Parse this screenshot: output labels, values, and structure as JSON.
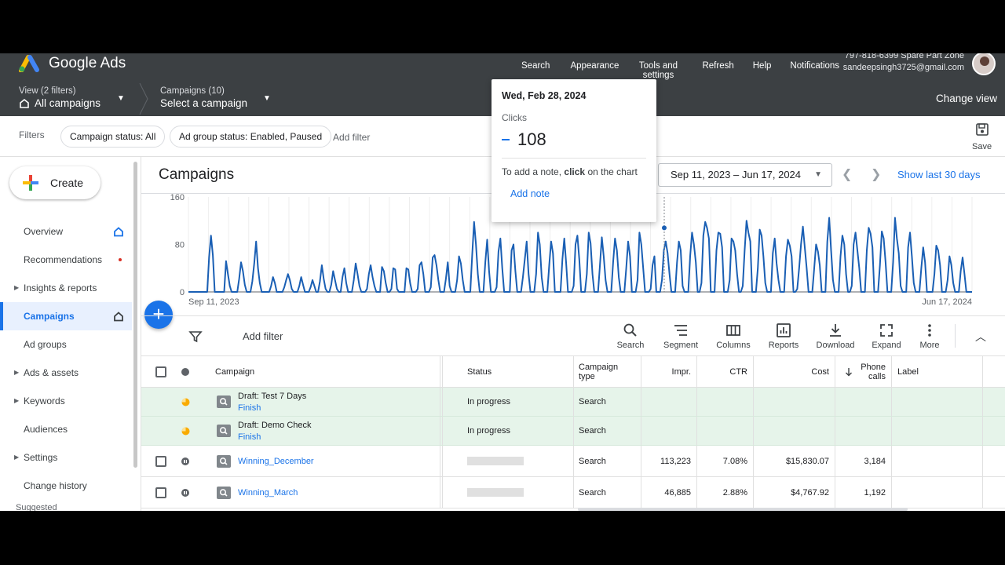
{
  "app": {
    "name": "Google Ads"
  },
  "topbar": {
    "actions": [
      {
        "label": "Search",
        "icon": "search-icon"
      },
      {
        "label": "Appearance",
        "icon": "appearance-icon"
      },
      {
        "label": "Tools and settings",
        "icon": "tools-icon"
      },
      {
        "label": "Refresh",
        "icon": "refresh-icon"
      },
      {
        "label": "Help",
        "icon": "help-icon"
      },
      {
        "label": "Notifications",
        "icon": "bell-icon"
      }
    ],
    "account_id": "797-818-6399 Spare Part Zone",
    "account_email": "sandeepsingh3725@gmail.com"
  },
  "viewbar": {
    "view_small": "View (2 filters)",
    "view_main": "All campaigns",
    "campaigns_small": "Campaigns (10)",
    "campaigns_main": "Select a campaign",
    "change_view": "Change view"
  },
  "filterbar": {
    "label": "Filters",
    "chips": [
      "Campaign status: All",
      "Ad group status: Enabled, Paused"
    ],
    "add_filter": "Add filter",
    "save": "Save"
  },
  "sidebar": {
    "create": "Create",
    "items": [
      {
        "label": "Overview",
        "expandable": false,
        "home": true
      },
      {
        "label": "Recommendations",
        "expandable": false,
        "dot": true
      },
      {
        "label": "Insights & reports",
        "expandable": true
      },
      {
        "label": "Campaigns",
        "expandable": false,
        "active": true,
        "home": true
      },
      {
        "label": "Ad groups",
        "expandable": false
      },
      {
        "label": "Ads & assets",
        "expandable": true
      },
      {
        "label": "Keywords",
        "expandable": true
      },
      {
        "label": "Audiences",
        "expandable": false
      },
      {
        "label": "Settings",
        "expandable": true
      },
      {
        "label": "Change history",
        "expandable": false
      }
    ],
    "suggested": "Suggested"
  },
  "main": {
    "title": "Campaigns",
    "date_range": "Sep 11, 2023 – Jun 17, 2024",
    "show_last": "Show last 30 days"
  },
  "chart_data": {
    "type": "line",
    "y_ticks": [
      "160",
      "80",
      "0"
    ],
    "ylim": [
      0,
      160
    ],
    "x_start_label": "Sep 11, 2023",
    "x_end_label": "Jun 17, 2024",
    "series": [
      {
        "values": [
          0,
          0,
          0,
          0,
          0,
          0,
          0,
          0,
          0,
          0,
          0,
          58,
          95,
          62,
          0,
          0,
          0,
          0,
          0,
          0,
          52,
          30,
          10,
          0,
          0,
          0,
          0,
          22,
          50,
          35,
          12,
          0,
          0,
          0,
          18,
          48,
          85,
          40,
          15,
          0,
          0,
          0,
          0,
          0,
          10,
          25,
          15,
          0,
          0,
          0,
          0,
          8,
          20,
          30,
          20,
          5,
          0,
          0,
          0,
          10,
          25,
          12,
          0,
          0,
          0,
          8,
          20,
          10,
          0,
          0,
          18,
          45,
          22,
          5,
          0,
          0,
          12,
          35,
          20,
          5,
          0,
          0,
          25,
          40,
          15,
          0,
          0,
          0,
          20,
          48,
          30,
          10,
          0,
          0,
          0,
          5,
          30,
          45,
          25,
          10,
          0,
          0,
          0,
          42,
          35,
          15,
          0,
          0,
          5,
          40,
          38,
          5,
          0,
          0,
          0,
          0,
          40,
          38,
          15,
          0,
          0,
          0,
          5,
          45,
          50,
          30,
          0,
          0,
          0,
          8,
          58,
          62,
          45,
          20,
          0,
          0,
          0,
          22,
          50,
          10,
          0,
          0,
          0,
          20,
          60,
          48,
          20,
          0,
          0,
          0,
          0,
          62,
          118,
          80,
          30,
          0,
          0,
          0,
          50,
          88,
          35,
          0,
          0,
          0,
          8,
          68,
          90,
          40,
          0,
          0,
          0,
          0,
          70,
          80,
          35,
          0,
          0,
          0,
          25,
          55,
          85,
          30,
          0,
          0,
          0,
          30,
          100,
          80,
          25,
          0,
          0,
          0,
          45,
          85,
          65,
          0,
          0,
          0,
          0,
          55,
          90,
          48,
          0,
          0,
          0,
          10,
          80,
          95,
          55,
          0,
          0,
          0,
          30,
          100,
          82,
          30,
          0,
          0,
          0,
          45,
          92,
          60,
          20,
          0,
          0,
          0,
          50,
          90,
          70,
          25,
          0,
          0,
          0,
          40,
          85,
          60,
          0,
          0,
          0,
          20,
          100,
          80,
          40,
          0,
          0,
          0,
          5,
          45,
          60,
          0,
          0,
          0,
          20,
          70,
          85,
          65,
          30,
          0,
          0,
          0,
          50,
          85,
          70,
          10,
          0,
          0,
          0,
          60,
          100,
          80,
          50,
          0,
          0,
          15,
          95,
          118,
          108,
          90,
          0,
          0,
          0,
          70,
          100,
          98,
          75,
          0,
          0,
          0,
          20,
          90,
          85,
          70,
          30,
          0,
          0,
          10,
          70,
          120,
          100,
          85,
          0,
          0,
          0,
          40,
          105,
          95,
          60,
          15,
          0,
          0,
          0,
          65,
          90,
          48,
          20,
          0,
          0,
          0,
          60,
          88,
          78,
          60,
          0,
          0,
          5,
          40,
          80,
          110,
          75,
          40,
          0,
          0,
          0,
          40,
          80,
          68,
          45,
          0,
          0,
          0,
          85,
          125,
          70,
          20,
          0,
          0,
          0,
          60,
          95,
          80,
          30,
          0,
          0,
          10,
          80,
          100,
          70,
          40,
          0,
          0,
          0,
          70,
          108,
          98,
          75,
          0,
          0,
          0,
          45,
          102,
          90,
          50,
          0,
          0,
          0,
          50,
          125,
          90,
          65,
          10,
          0,
          0,
          0,
          75,
          100,
          60,
          15,
          0,
          0,
          0,
          40,
          75,
          50,
          0,
          0,
          0,
          0,
          30,
          78,
          70,
          45,
          0,
          0,
          0,
          20,
          60,
          45,
          15,
          0,
          0,
          0,
          35,
          58,
          30,
          0,
          0,
          0,
          0
        ]
      }
    ]
  },
  "tablebar": {
    "add_filter": "Add filter",
    "tools": [
      {
        "label": "Search",
        "icon": "search-icon"
      },
      {
        "label": "Segment",
        "icon": "segment-icon"
      },
      {
        "label": "Columns",
        "icon": "columns-icon"
      },
      {
        "label": "Reports",
        "icon": "reports-icon"
      },
      {
        "label": "Download",
        "icon": "download-icon"
      },
      {
        "label": "Expand",
        "icon": "expand-icon"
      },
      {
        "label": "More",
        "icon": "more-icon"
      }
    ]
  },
  "table": {
    "headers": {
      "campaign": "Campaign",
      "status": "Status",
      "campaign_type": "Campaign type",
      "impr": "Impr.",
      "ctr": "CTR",
      "cost": "Cost",
      "phone_calls": "Phone calls",
      "label": "Label"
    },
    "rows": [
      {
        "name": "Draft: Test 7 Days",
        "sub": "Finish",
        "status": "In progress",
        "type": "Search",
        "impr": "",
        "ctr": "",
        "cost": "",
        "calls": ""
      },
      {
        "name": "Draft: Demo Check",
        "sub": "Finish",
        "status": "In progress",
        "type": "Search",
        "impr": "",
        "ctr": "",
        "cost": "",
        "calls": ""
      },
      {
        "name": "Winning_December",
        "status": "",
        "type": "Search",
        "impr": "113,223",
        "ctr": "7.08%",
        "cost": "$15,830.07",
        "calls": "3,184"
      },
      {
        "name": "Winning_March",
        "status": "",
        "type": "Search",
        "impr": "46,885",
        "ctr": "2.88%",
        "cost": "$4,767.92",
        "calls": "1,192"
      }
    ]
  },
  "tooltip": {
    "date": "Wed, Feb 28, 2024",
    "metric": "Clicks",
    "value": "108",
    "note_prefix": "To add a note, ",
    "note_bold": "click",
    "note_suffix": " on the chart",
    "add_note": "Add note"
  },
  "colors": {
    "accent": "#1a73e8",
    "line": "#1a5fb4",
    "draft_row": "#e6f4ea",
    "topbar": "#3c4043"
  }
}
